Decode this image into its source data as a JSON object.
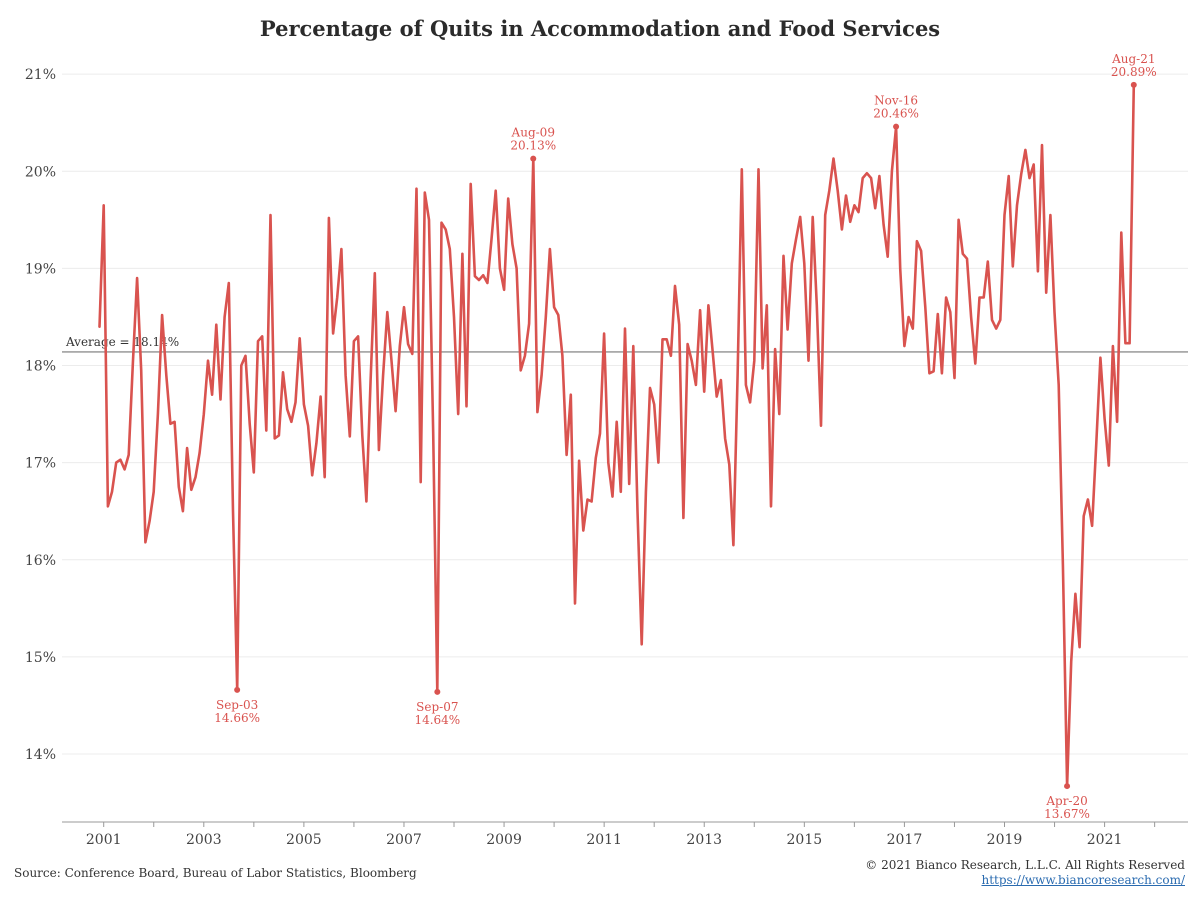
{
  "chart_data": {
    "type": "line",
    "title": "Percentage of Quits in Accommodation and Food Services",
    "xlabel": "",
    "ylabel": "",
    "x_start": "2000-12",
    "x_tick_labels": [
      "2001",
      "2003",
      "2005",
      "2007",
      "2009",
      "2011",
      "2013",
      "2015",
      "2017",
      "2019",
      "2021"
    ],
    "xlim": [
      "2000-03",
      "2022-09"
    ],
    "ylim": [
      13.3,
      21.3
    ],
    "yticks": [
      14,
      15,
      16,
      17,
      18,
      19,
      20,
      21
    ],
    "y_tick_suffix": "%",
    "grid": "horizontal",
    "series": [
      {
        "color": "#d9534f",
        "values": [
          18.4,
          19.65,
          16.55,
          16.7,
          17.0,
          17.03,
          16.93,
          17.08,
          18.03,
          18.9,
          17.95,
          16.18,
          16.4,
          16.7,
          17.5,
          18.52,
          17.9,
          17.4,
          17.42,
          16.75,
          16.5,
          17.15,
          16.72,
          16.85,
          17.1,
          17.5,
          18.05,
          17.7,
          18.42,
          17.65,
          18.5,
          18.85,
          16.5,
          14.66,
          18.0,
          18.1,
          17.4,
          16.9,
          18.25,
          18.3,
          17.33,
          19.55,
          17.25,
          17.28,
          17.93,
          17.55,
          17.42,
          17.62,
          18.28,
          17.6,
          17.38,
          16.87,
          17.2,
          17.68,
          16.85,
          19.52,
          18.33,
          18.7,
          19.2,
          17.9,
          17.27,
          18.25,
          18.3,
          17.28,
          16.6,
          17.85,
          18.95,
          17.13,
          17.9,
          18.55,
          18.05,
          17.53,
          18.2,
          18.6,
          18.22,
          18.12,
          19.82,
          16.8,
          19.78,
          19.5,
          17.3,
          14.64,
          19.47,
          19.4,
          19.2,
          18.5,
          17.5,
          19.15,
          17.58,
          19.87,
          18.92,
          18.88,
          18.93,
          18.85,
          19.3,
          19.8,
          19.0,
          18.78,
          19.72,
          19.25,
          19.0,
          17.95,
          18.1,
          18.43,
          20.13,
          17.52,
          17.9,
          18.5,
          19.2,
          18.6,
          18.52,
          18.1,
          17.08,
          17.7,
          15.55,
          17.02,
          16.3,
          16.62,
          16.6,
          17.05,
          17.3,
          18.33,
          17.0,
          16.65,
          17.42,
          16.7,
          18.38,
          16.78,
          18.2,
          16.5,
          15.13,
          16.7,
          17.77,
          17.6,
          17.0,
          18.27,
          18.27,
          18.1,
          18.82,
          18.42,
          16.43,
          18.22,
          18.05,
          17.8,
          18.57,
          17.73,
          18.62,
          18.15,
          17.68,
          17.85,
          17.25,
          16.98,
          16.15,
          17.9,
          20.02,
          17.8,
          17.62,
          18.05,
          20.02,
          17.97,
          18.62,
          16.55,
          18.17,
          17.5,
          19.13,
          18.37,
          19.05,
          19.3,
          19.53,
          19.05,
          18.05,
          19.53,
          18.62,
          17.38,
          19.55,
          19.8,
          20.13,
          19.8,
          19.4,
          19.75,
          19.48,
          19.65,
          19.58,
          19.93,
          19.98,
          19.93,
          19.62,
          19.95,
          19.45,
          19.12,
          20.0,
          20.46,
          19.0,
          18.2,
          18.5,
          18.38,
          19.28,
          19.18,
          18.6,
          17.92,
          17.94,
          18.53,
          17.92,
          18.7,
          18.55,
          17.87,
          19.5,
          19.15,
          19.1,
          18.5,
          18.02,
          18.7,
          18.7,
          19.07,
          18.47,
          18.38,
          18.47,
          19.55,
          19.95,
          19.02,
          19.65,
          19.97,
          20.22,
          19.93,
          20.07,
          18.97,
          20.27,
          18.75,
          19.55,
          18.55,
          17.8,
          15.95,
          13.67,
          14.95,
          15.65,
          15.1,
          16.45,
          16.62,
          16.35,
          17.2,
          18.08,
          17.45,
          16.97,
          18.2,
          17.42,
          19.37,
          18.23,
          18.23,
          20.89
        ]
      }
    ],
    "average": {
      "value": 18.14,
      "label": "Average = 18.14%"
    },
    "annotations": [
      {
        "date_label": "Sep-03",
        "value_label": "14.66%",
        "index": 33,
        "value": 14.66,
        "position": "below"
      },
      {
        "date_label": "Sep-07",
        "value_label": "14.64%",
        "index": 81,
        "value": 14.64,
        "position": "below"
      },
      {
        "date_label": "Aug-09",
        "value_label": "20.13%",
        "index": 104,
        "value": 20.13,
        "position": "above"
      },
      {
        "date_label": "Nov-16",
        "value_label": "20.46%",
        "index": 191,
        "value": 20.46,
        "position": "above"
      },
      {
        "date_label": "Apr-20",
        "value_label": "13.67%",
        "index": 232,
        "value": 13.67,
        "position": "below"
      },
      {
        "date_label": "Aug-21",
        "value_label": "20.89%",
        "index": 248,
        "value": 20.89,
        "position": "above"
      }
    ]
  },
  "footer": {
    "source": "Source: Conference Board, Bureau of Labor Statistics, Bloomberg",
    "copyright": "© 2021 Bianco Research, L.L.C. All Rights Reserved",
    "link": "https://www.biancoresearch.com/"
  }
}
